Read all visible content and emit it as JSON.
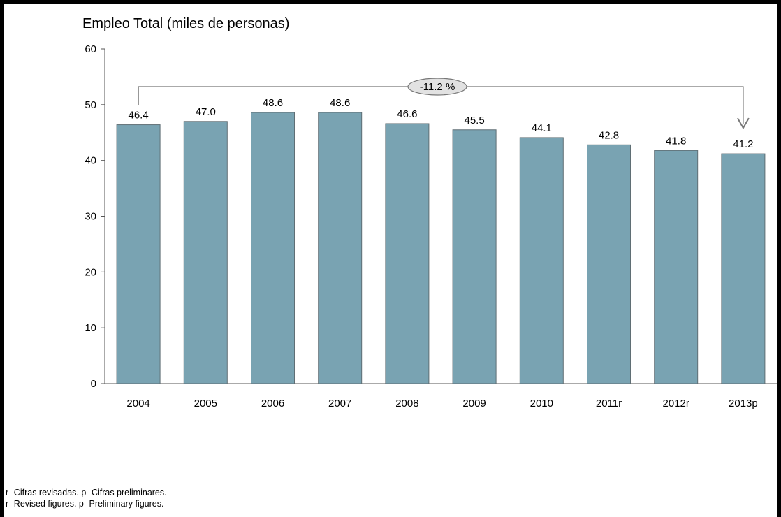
{
  "chart_data": {
    "type": "bar",
    "title": "Empleo Total (miles de personas)",
    "xlabel": "",
    "ylabel": "",
    "categories": [
      "2004",
      "2005",
      "2006",
      "2007",
      "2008",
      "2009",
      "2010",
      "2011r",
      "2012r",
      "2013p"
    ],
    "values": [
      46.4,
      47.0,
      48.6,
      48.6,
      46.6,
      45.5,
      44.1,
      42.8,
      41.8,
      41.2
    ],
    "value_labels": [
      "46.4",
      "47.0",
      "48.6",
      "48.6",
      "46.6",
      "45.5",
      "44.1",
      "42.8",
      "41.8",
      "41.2"
    ],
    "ylim": [
      0,
      60
    ],
    "yticks": [
      0,
      10,
      20,
      30,
      40,
      50,
      60
    ],
    "grid": false,
    "bar_color": "#79a3b2",
    "annotation": {
      "text": "-11.2 %",
      "from": "2004",
      "to": "2013p"
    }
  },
  "notes": [
    "r- Cifras revisadas. p- Cifras preliminares.",
    "r- Revised figures.  p- Preliminary figures."
  ]
}
